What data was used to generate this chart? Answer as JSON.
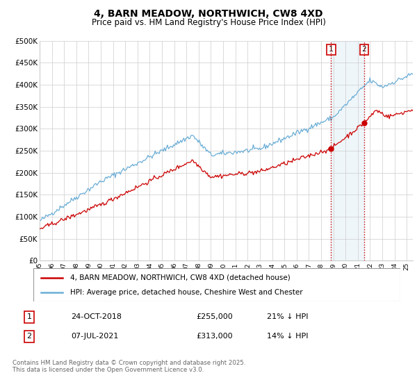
{
  "title": "4, BARN MEADOW, NORTHWICH, CW8 4XD",
  "subtitle": "Price paid vs. HM Land Registry's House Price Index (HPI)",
  "ylabel_ticks": [
    "£0",
    "£50K",
    "£100K",
    "£150K",
    "£200K",
    "£250K",
    "£300K",
    "£350K",
    "£400K",
    "£450K",
    "£500K"
  ],
  "ytick_values": [
    0,
    50000,
    100000,
    150000,
    200000,
    250000,
    300000,
    350000,
    400000,
    450000,
    500000
  ],
  "ylim": [
    0,
    500000
  ],
  "xlim_years": [
    1995,
    2025.5
  ],
  "xtick_years": [
    1995,
    1996,
    1997,
    1998,
    1999,
    2000,
    2001,
    2002,
    2003,
    2004,
    2005,
    2006,
    2007,
    2008,
    2009,
    2010,
    2011,
    2012,
    2013,
    2014,
    2015,
    2016,
    2017,
    2018,
    2019,
    2020,
    2021,
    2022,
    2023,
    2024,
    2025
  ],
  "hpi_color": "#6baed6",
  "price_color": "#cc0000",
  "vline_color": "#cc0000",
  "point1_year": 2018.82,
  "point1_price": 255000,
  "point2_year": 2021.52,
  "point2_price": 313000,
  "legend_label_price": "4, BARN MEADOW, NORTHWICH, CW8 4XD (detached house)",
  "legend_label_hpi": "HPI: Average price, detached house, Cheshire West and Chester",
  "table_row1": [
    "1",
    "24-OCT-2018",
    "£255,000",
    "21% ↓ HPI"
  ],
  "table_row2": [
    "2",
    "07-JUL-2021",
    "£313,000",
    "14% ↓ HPI"
  ],
  "footer": "Contains HM Land Registry data © Crown copyright and database right 2025.\nThis data is licensed under the Open Government Licence v3.0.",
  "background_color": "#ffffff",
  "grid_color": "#cccccc"
}
